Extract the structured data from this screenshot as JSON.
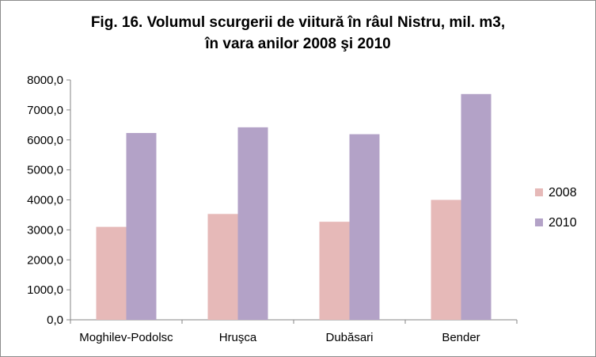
{
  "chart_data": {
    "type": "bar",
    "title_lines": [
      "Fig. 16. Volumul scurgerii de viitură în râul Nistru, mil. m3,",
      "în vara anilor 2008 şi 2010"
    ],
    "categories": [
      "Moghilev-Podolsc",
      "Hruşca",
      "Dubăsari",
      "Bender"
    ],
    "series": [
      {
        "name": "2008",
        "values": [
          3100,
          3530,
          3270,
          4000
        ]
      },
      {
        "name": "2010",
        "values": [
          6230,
          6420,
          6190,
          7530
        ]
      }
    ],
    "y_ticks": [
      "0,0",
      "1000,0",
      "2000,0",
      "3000,0",
      "4000,0",
      "5000,0",
      "6000,0",
      "7000,0",
      "8000,0"
    ],
    "ylim": [
      0,
      8000
    ],
    "grid": false,
    "legend_position": "right",
    "colors": {
      "2008": "#e6b9b8",
      "2010": "#b3a2c7",
      "axis": "#868686"
    }
  }
}
